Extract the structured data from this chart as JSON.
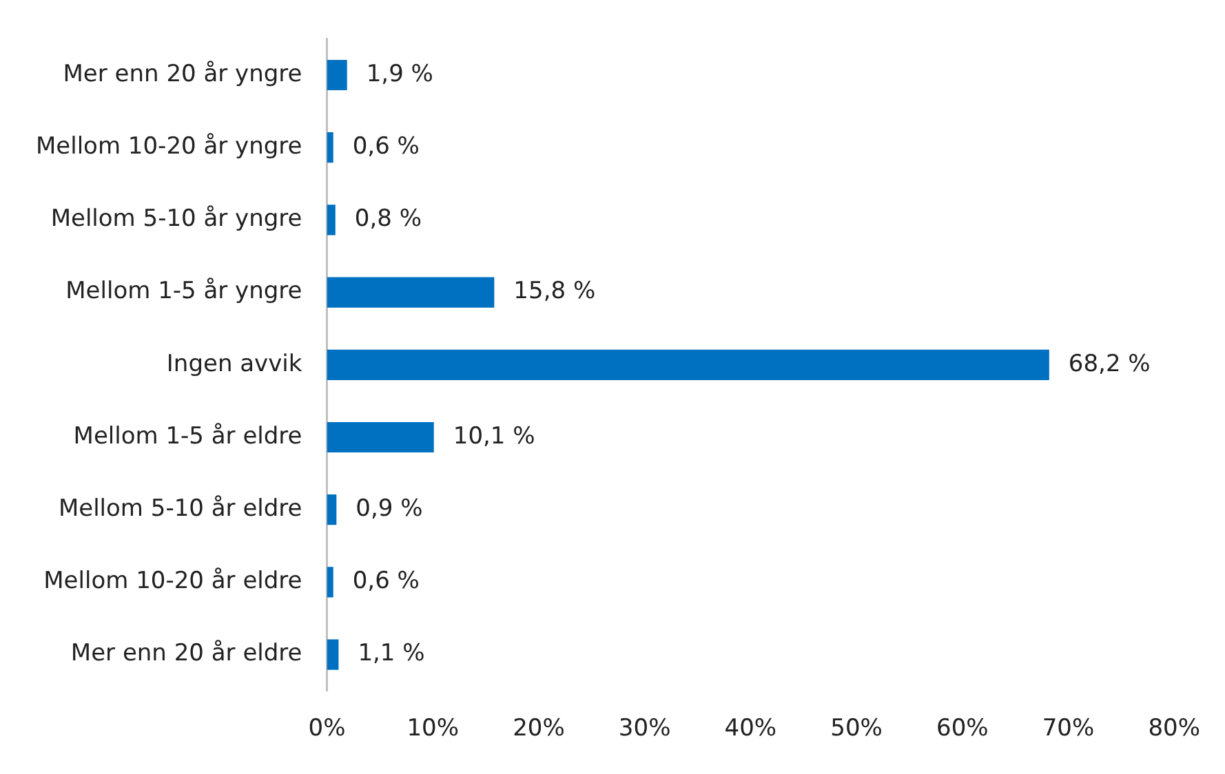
{
  "chart_data": {
    "type": "bar",
    "orientation": "horizontal",
    "categories": [
      "Mer enn 20 år yngre",
      "Mellom 10-20 år yngre",
      "Mellom 5-10 år yngre",
      "Mellom 1-5 år yngre",
      "Ingen avvik",
      "Mellom 1-5 år eldre",
      "Mellom 5-10 år eldre",
      "Mellom 10-20 år eldre",
      "Mer enn 20 år eldre"
    ],
    "values": [
      1.9,
      0.6,
      0.8,
      15.8,
      68.2,
      10.1,
      0.9,
      0.6,
      1.1
    ],
    "value_labels": [
      "1,9 %",
      "0,6 %",
      "0,8 %",
      "15,8 %",
      "68,2 %",
      "10,1 %",
      "0,9 %",
      "0,6 %",
      "1,1 %"
    ],
    "color": "#0070c0",
    "xlim": [
      0,
      80
    ],
    "xticks": [
      {
        "value": 0,
        "label": "0%"
      },
      {
        "value": 10,
        "label": "10%"
      },
      {
        "value": 20,
        "label": "20%"
      },
      {
        "value": 30,
        "label": "30%"
      },
      {
        "value": 40,
        "label": "40%"
      },
      {
        "value": 50,
        "label": "50%"
      },
      {
        "value": 60,
        "label": "60%"
      },
      {
        "value": 70,
        "label": "70%"
      },
      {
        "value": 80,
        "label": "80%"
      }
    ],
    "grid": false,
    "legend": false
  }
}
